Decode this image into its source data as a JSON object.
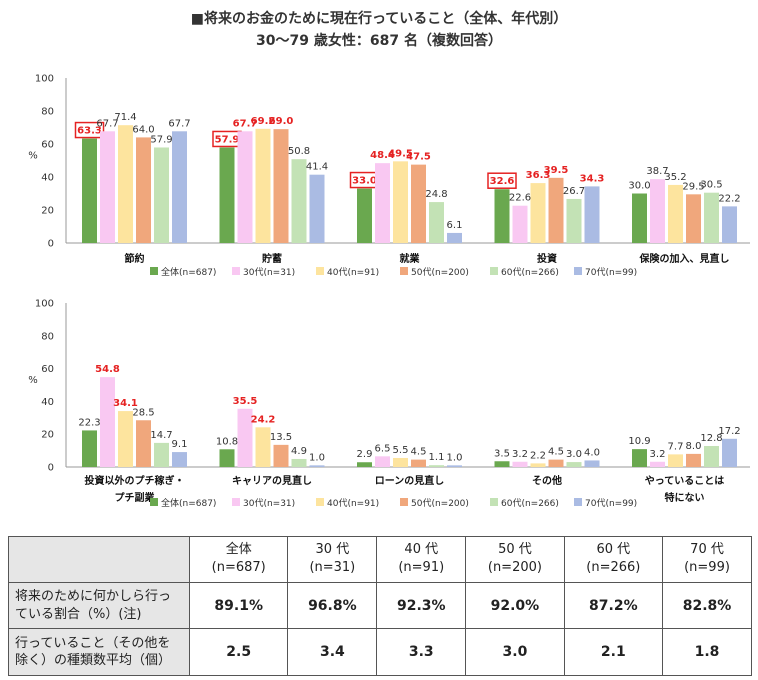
{
  "title": "■将来のお金のために現在行っていること（全体、年代別）",
  "subtitle": "30～79 歳女性：687 名（複数回答）",
  "colors": {
    "全体": "#6aa84f",
    "30代": "#f9c8f2",
    "40代": "#fde49e",
    "50代": "#f0a77c",
    "60代": "#c3e2b5",
    "70代": "#aabbe3",
    "highlight": "#e52222"
  },
  "chart_data": [
    {
      "type": "bar",
      "ylabel": "%",
      "ylim": [
        0,
        100
      ],
      "yticks": [
        0,
        20,
        40,
        60,
        80,
        100
      ],
      "categories": [
        "節約",
        "貯蓄",
        "就業",
        "投資",
        "保険の加入、見直し"
      ],
      "series": [
        {
          "name": "全体(n=687)",
          "values": [
            63.3,
            57.9,
            33.0,
            32.6,
            30.0
          ]
        },
        {
          "name": "30代(n=31)",
          "values": [
            67.7,
            67.7,
            48.4,
            22.6,
            38.7
          ]
        },
        {
          "name": "40代(n=91)",
          "values": [
            71.4,
            69.2,
            49.5,
            36.3,
            35.2
          ]
        },
        {
          "name": "50代(n=200)",
          "values": [
            64.0,
            69.0,
            47.5,
            39.5,
            29.5
          ]
        },
        {
          "name": "60代(n=266)",
          "values": [
            57.9,
            50.8,
            24.8,
            26.7,
            30.5
          ]
        },
        {
          "name": "70代(n=99)",
          "values": [
            67.7,
            41.4,
            6.1,
            34.3,
            22.2
          ]
        }
      ],
      "highlighted": [
        [
          0,
          0
        ],
        [
          1,
          0
        ],
        [
          1,
          1
        ],
        [
          1,
          2
        ],
        [
          1,
          3
        ],
        [
          2,
          0
        ],
        [
          2,
          1
        ],
        [
          2,
          2
        ],
        [
          2,
          3
        ],
        [
          3,
          0
        ],
        [
          3,
          2
        ],
        [
          3,
          3
        ],
        [
          3,
          5
        ]
      ],
      "boxed": [
        [
          0,
          0
        ],
        [
          1,
          0
        ],
        [
          2,
          0
        ],
        [
          3,
          0
        ]
      ]
    },
    {
      "type": "bar",
      "ylabel": "%",
      "ylim": [
        0,
        100
      ],
      "yticks": [
        0,
        20,
        40,
        60,
        80,
        100
      ],
      "categories": [
        "投資以外のプチ稼ぎ・\nプチ副業",
        "キャリアの見直し",
        "ローンの見直し",
        "その他",
        "やっていることは\n特にない"
      ],
      "series": [
        {
          "name": "全体(n=687)",
          "values": [
            22.3,
            10.8,
            2.9,
            3.5,
            10.9
          ]
        },
        {
          "name": "30代(n=31)",
          "values": [
            54.8,
            35.5,
            6.5,
            3.2,
            3.2
          ]
        },
        {
          "name": "40代(n=91)",
          "values": [
            34.1,
            24.2,
            5.5,
            2.2,
            7.7
          ]
        },
        {
          "name": "50代(n=200)",
          "values": [
            28.5,
            13.5,
            4.5,
            4.5,
            8.0
          ]
        },
        {
          "name": "60代(n=266)",
          "values": [
            14.7,
            4.9,
            1.1,
            3.0,
            12.8
          ]
        },
        {
          "name": "70代(n=99)",
          "values": [
            9.1,
            1.0,
            1.0,
            4.0,
            17.2
          ]
        }
      ],
      "highlighted": [
        [
          0,
          1
        ],
        [
          0,
          2
        ],
        [
          1,
          1
        ],
        [
          1,
          2
        ]
      ],
      "boxed": []
    }
  ],
  "table": {
    "headers": [
      {
        "line1": "全体",
        "line2": "(n=687)"
      },
      {
        "line1": "30 代",
        "line2": "(n=31)"
      },
      {
        "line1": "40 代",
        "line2": "(n=91)"
      },
      {
        "line1": "50 代",
        "line2": "(n=200)"
      },
      {
        "line1": "60 代",
        "line2": "(n=266)"
      },
      {
        "line1": "70 代",
        "line2": "(n=99)"
      }
    ],
    "rows": [
      {
        "label": "将来のために何かしら行っている割合（%）(注)",
        "values": [
          "89.1%",
          "96.8%",
          "92.3%",
          "92.0%",
          "87.2%",
          "82.8%"
        ]
      },
      {
        "label": "行っていること（その他を除く）の種類数平均（個）",
        "values": [
          "2.5",
          "3.4",
          "3.3",
          "3.0",
          "2.1",
          "1.8"
        ]
      }
    ]
  }
}
